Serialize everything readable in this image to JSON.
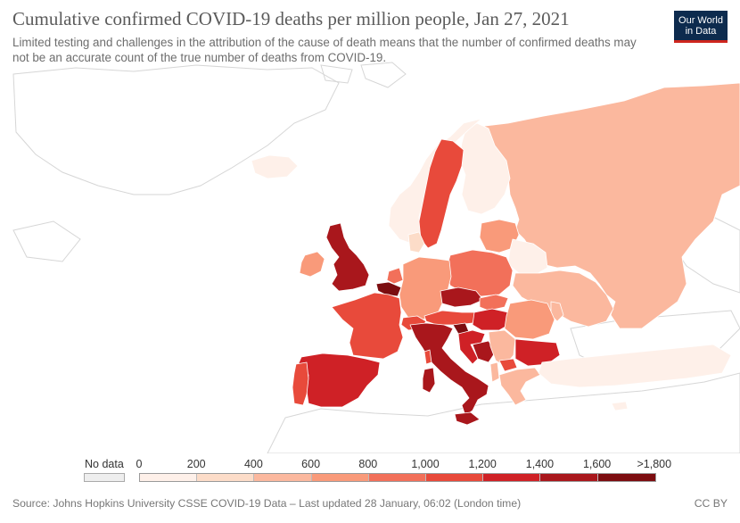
{
  "header": {
    "title": "Cumulative confirmed COVID-19 deaths per million people, Jan 27, 2021",
    "subtitle": "Limited testing and challenges in the attribution of the cause of death means that the number of confirmed deaths may not be an accurate count of the true number of deaths from COVID-19."
  },
  "logo": {
    "line1": "Our World",
    "line2": "in Data"
  },
  "legend": {
    "no_data_label": "No data",
    "ticks": [
      "0",
      "200",
      "400",
      "600",
      "800",
      "1,000",
      "1,200",
      "1,400",
      "1,600",
      ">1,800"
    ],
    "colors": [
      "#fef0e9",
      "#fcdcc8",
      "#fbb89e",
      "#f99a7a",
      "#f2705a",
      "#e84a3b",
      "#cf2126",
      "#a9171c",
      "#7c0d10"
    ]
  },
  "footer": {
    "source": "Source: Johns Hopkins University CSSE COVID-19 Data – Last updated 28 January, 06:02 (London time)",
    "license": "CC BY"
  },
  "map_regions": [
    {
      "name": "region-russia",
      "color": "#fbb89e"
    },
    {
      "name": "region-finland",
      "color": "#fef0e9"
    },
    {
      "name": "region-norway",
      "color": "#fef0e9"
    },
    {
      "name": "region-sweden",
      "color": "#e84a3b"
    },
    {
      "name": "region-denmark",
      "color": "#fcdcc8"
    },
    {
      "name": "region-baltics",
      "color": "#f99a7a"
    },
    {
      "name": "region-belarus",
      "color": "#fef0e9"
    },
    {
      "name": "region-united-kingdom",
      "color": "#a9171c"
    },
    {
      "name": "region-ireland",
      "color": "#f99a7a"
    },
    {
      "name": "region-france",
      "color": "#e84a3b"
    },
    {
      "name": "region-spain",
      "color": "#cf2126"
    },
    {
      "name": "region-portugal",
      "color": "#e84a3b"
    },
    {
      "name": "region-belgium",
      "color": "#7c0d10"
    },
    {
      "name": "region-netherlands",
      "color": "#f2705a"
    },
    {
      "name": "region-germany",
      "color": "#f99a7a"
    },
    {
      "name": "region-poland",
      "color": "#f2705a"
    },
    {
      "name": "region-czechia",
      "color": "#a9171c"
    },
    {
      "name": "region-switzerland",
      "color": "#e84a3b"
    },
    {
      "name": "region-austria",
      "color": "#e84a3b"
    },
    {
      "name": "region-italy",
      "color": "#a9171c"
    },
    {
      "name": "region-sardinia",
      "color": "#a9171c"
    },
    {
      "name": "region-hungary",
      "color": "#cf2126"
    },
    {
      "name": "region-slovakia",
      "color": "#f2705a"
    },
    {
      "name": "region-slovenia",
      "color": "#7c0d10"
    },
    {
      "name": "region-croatia",
      "color": "#cf2126"
    },
    {
      "name": "region-bosnia",
      "color": "#a9171c"
    },
    {
      "name": "region-serbia",
      "color": "#fbb89e"
    },
    {
      "name": "region-romania",
      "color": "#f99a7a"
    },
    {
      "name": "region-bulgaria",
      "color": "#cf2126"
    },
    {
      "name": "region-north-macedonia",
      "color": "#e84a3b"
    },
    {
      "name": "region-greece",
      "color": "#fbb89e"
    },
    {
      "name": "region-moldova",
      "color": "#fbb89e"
    },
    {
      "name": "region-ukraine",
      "color": "#fbb89e"
    },
    {
      "name": "region-iceland",
      "color": "#fef0e9"
    },
    {
      "name": "region-turkey",
      "color": "#fef0e9"
    },
    {
      "name": "region-cyprus",
      "color": "#fef0e9"
    },
    {
      "name": "region-corsica",
      "color": "#e84a3b"
    },
    {
      "name": "region-albania",
      "color": "#fbb89e"
    }
  ]
}
